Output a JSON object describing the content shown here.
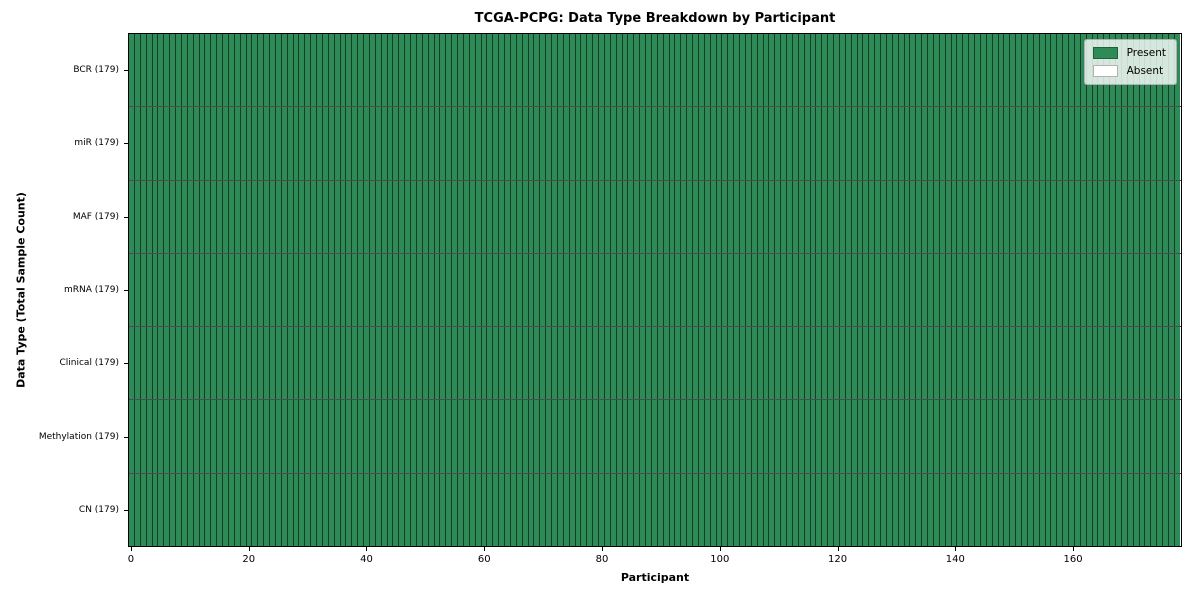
{
  "chart_data": {
    "type": "heatmap",
    "title": "TCGA-PCPG: Data Type Breakdown by Participant",
    "xlabel": "Participant",
    "ylabel": "Data Type (Total Sample Count)",
    "n_participants": 179,
    "xlim": [
      -0.5,
      178.5
    ],
    "x_ticks": [
      0,
      20,
      40,
      60,
      80,
      100,
      120,
      140,
      160
    ],
    "rows": [
      {
        "label": "BCR (179)",
        "data_type": "BCR",
        "total_sample_count": 179,
        "present_count": 179,
        "absent_count": 0,
        "absent_indices": []
      },
      {
        "label": "miR (179)",
        "data_type": "miR",
        "total_sample_count": 179,
        "present_count": 179,
        "absent_count": 0,
        "absent_indices": []
      },
      {
        "label": "MAF (179)",
        "data_type": "MAF",
        "total_sample_count": 179,
        "present_count": 179,
        "absent_count": 0,
        "absent_indices": []
      },
      {
        "label": "mRNA (179)",
        "data_type": "mRNA",
        "total_sample_count": 179,
        "present_count": 179,
        "absent_count": 0,
        "absent_indices": []
      },
      {
        "label": "Clinical (179)",
        "data_type": "Clinical",
        "total_sample_count": 179,
        "present_count": 179,
        "absent_count": 0,
        "absent_indices": []
      },
      {
        "label": "Methylation (179)",
        "data_type": "Methylation",
        "total_sample_count": 179,
        "present_count": 179,
        "absent_count": 0,
        "absent_indices": []
      },
      {
        "label": "CN (179)",
        "data_type": "CN",
        "total_sample_count": 179,
        "present_count": 179,
        "absent_count": 0,
        "absent_indices": []
      }
    ],
    "legend": {
      "position": "upper-right",
      "entries": [
        {
          "label": "Present",
          "color": "#2e8b57"
        },
        {
          "label": "Absent",
          "color": "#ffffff"
        }
      ]
    },
    "colors": {
      "present": "#2e8b57",
      "absent": "#ffffff",
      "cell_edge": "rgba(0,0,0,0.55)",
      "row_divider": "rgba(0,0,0,0.7)",
      "axis_line": "#000000",
      "background": "#ffffff"
    },
    "grid": false
  }
}
